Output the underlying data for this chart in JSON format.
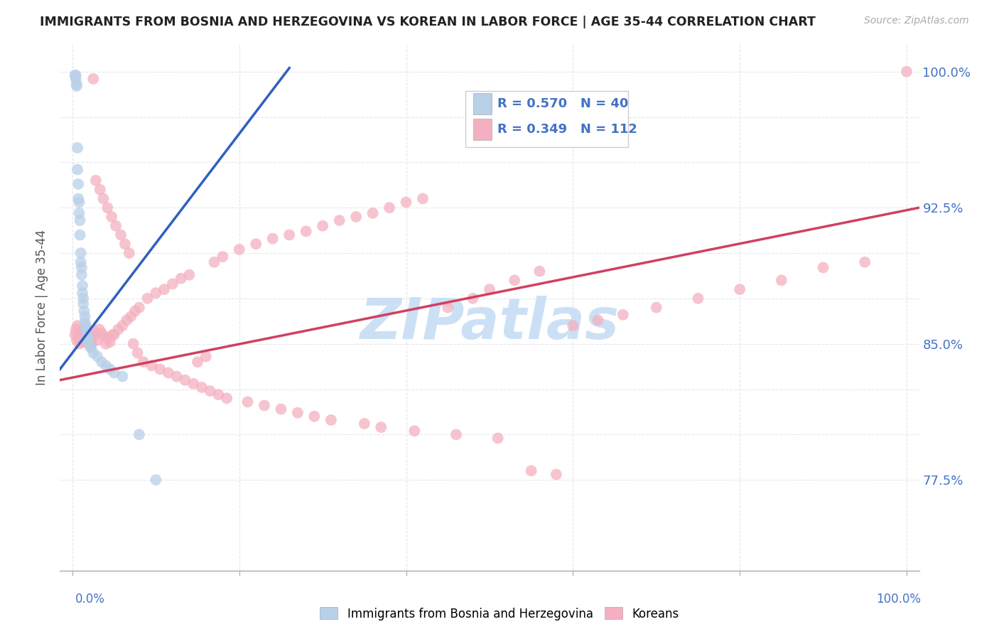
{
  "title": "IMMIGRANTS FROM BOSNIA AND HERZEGOVINA VS KOREAN IN LABOR FORCE | AGE 35-44 CORRELATION CHART",
  "source": "Source: ZipAtlas.com",
  "ylabel": "In Labor Force | Age 35-44",
  "ylim": [
    0.725,
    1.015
  ],
  "xlim": [
    -0.015,
    1.015
  ],
  "bosnia_R": 0.57,
  "bosnia_N": 40,
  "korean_R": 0.349,
  "korean_N": 112,
  "bosnia_color": "#b8d0e8",
  "korean_color": "#f4b0c0",
  "bosnia_line_color": "#3060c0",
  "korean_line_color": "#d04060",
  "watermark": "ZIPatlas",
  "watermark_color": "#cce0f5",
  "ytick_vals": [
    0.775,
    0.85,
    0.925,
    1.0
  ],
  "ytick_labels": [
    "77.5%",
    "85.0%",
    "92.5%",
    "100.0%"
  ],
  "ytick_minor": [
    0.775,
    0.8,
    0.825,
    0.85,
    0.875,
    0.9,
    0.925,
    0.95,
    0.975,
    1.0
  ],
  "xtick_vals": [
    0.0,
    0.2,
    0.4,
    0.6,
    0.8,
    1.0
  ],
  "bosnia_x": [
    0.003,
    0.004,
    0.004,
    0.005,
    0.005,
    0.006,
    0.006,
    0.007,
    0.007,
    0.008,
    0.008,
    0.009,
    0.009,
    0.01,
    0.01,
    0.011,
    0.011,
    0.012,
    0.012,
    0.013,
    0.013,
    0.014,
    0.015,
    0.015,
    0.016,
    0.016,
    0.017,
    0.018,
    0.019,
    0.02,
    0.022,
    0.025,
    0.03,
    0.035,
    0.04,
    0.045,
    0.05,
    0.06,
    0.08,
    0.1
  ],
  "bosnia_y": [
    0.998,
    0.998,
    0.996,
    0.993,
    0.992,
    0.958,
    0.946,
    0.938,
    0.93,
    0.928,
    0.922,
    0.918,
    0.91,
    0.9,
    0.895,
    0.892,
    0.888,
    0.882,
    0.878,
    0.875,
    0.872,
    0.868,
    0.865,
    0.862,
    0.86,
    0.858,
    0.857,
    0.854,
    0.852,
    0.85,
    0.848,
    0.845,
    0.843,
    0.84,
    0.838,
    0.836,
    0.834,
    0.832,
    0.8,
    0.775
  ],
  "korean_x": [
    0.003,
    0.004,
    0.005,
    0.006,
    0.007,
    0.008,
    0.009,
    0.01,
    0.011,
    0.012,
    0.013,
    0.014,
    0.015,
    0.016,
    0.017,
    0.018,
    0.019,
    0.02,
    0.021,
    0.022,
    0.023,
    0.024,
    0.025,
    0.027,
    0.03,
    0.032,
    0.035,
    0.038,
    0.04,
    0.043,
    0.045,
    0.048,
    0.05,
    0.055,
    0.06,
    0.065,
    0.07,
    0.075,
    0.08,
    0.09,
    0.1,
    0.11,
    0.12,
    0.13,
    0.14,
    0.15,
    0.16,
    0.17,
    0.18,
    0.2,
    0.22,
    0.24,
    0.26,
    0.28,
    0.3,
    0.32,
    0.34,
    0.36,
    0.38,
    0.4,
    0.42,
    0.45,
    0.48,
    0.5,
    0.53,
    0.56,
    0.6,
    0.63,
    0.66,
    0.7,
    0.75,
    0.8,
    0.85,
    0.9,
    0.95,
    1.0,
    0.025,
    0.028,
    0.033,
    0.037,
    0.042,
    0.047,
    0.052,
    0.058,
    0.063,
    0.068,
    0.073,
    0.078,
    0.085,
    0.095,
    0.105,
    0.115,
    0.125,
    0.135,
    0.145,
    0.155,
    0.165,
    0.175,
    0.185,
    0.21,
    0.23,
    0.25,
    0.27,
    0.29,
    0.31,
    0.35,
    0.37,
    0.41,
    0.46,
    0.51,
    0.55,
    0.58
  ],
  "korean_y": [
    0.855,
    0.858,
    0.852,
    0.86,
    0.854,
    0.85,
    0.856,
    0.853,
    0.857,
    0.852,
    0.851,
    0.855,
    0.86,
    0.858,
    0.853,
    0.856,
    0.85,
    0.852,
    0.854,
    0.848,
    0.85,
    0.853,
    0.857,
    0.855,
    0.852,
    0.858,
    0.856,
    0.854,
    0.85,
    0.853,
    0.851,
    0.855,
    0.855,
    0.858,
    0.86,
    0.863,
    0.865,
    0.868,
    0.87,
    0.875,
    0.878,
    0.88,
    0.883,
    0.886,
    0.888,
    0.84,
    0.843,
    0.895,
    0.898,
    0.902,
    0.905,
    0.908,
    0.91,
    0.912,
    0.915,
    0.918,
    0.92,
    0.922,
    0.925,
    0.928,
    0.93,
    0.87,
    0.875,
    0.88,
    0.885,
    0.89,
    0.86,
    0.863,
    0.866,
    0.87,
    0.875,
    0.88,
    0.885,
    0.892,
    0.895,
    1.0,
    0.996,
    0.94,
    0.935,
    0.93,
    0.925,
    0.92,
    0.915,
    0.91,
    0.905,
    0.9,
    0.85,
    0.845,
    0.84,
    0.838,
    0.836,
    0.834,
    0.832,
    0.83,
    0.828,
    0.826,
    0.824,
    0.822,
    0.82,
    0.818,
    0.816,
    0.814,
    0.812,
    0.81,
    0.808,
    0.806,
    0.804,
    0.802,
    0.8,
    0.798,
    0.78,
    0.778
  ],
  "bosnia_line_x": [
    -0.015,
    0.26
  ],
  "bosnia_line_y": [
    0.836,
    1.002
  ],
  "korean_line_x": [
    -0.015,
    1.015
  ],
  "korean_line_y": [
    0.83,
    0.925
  ]
}
